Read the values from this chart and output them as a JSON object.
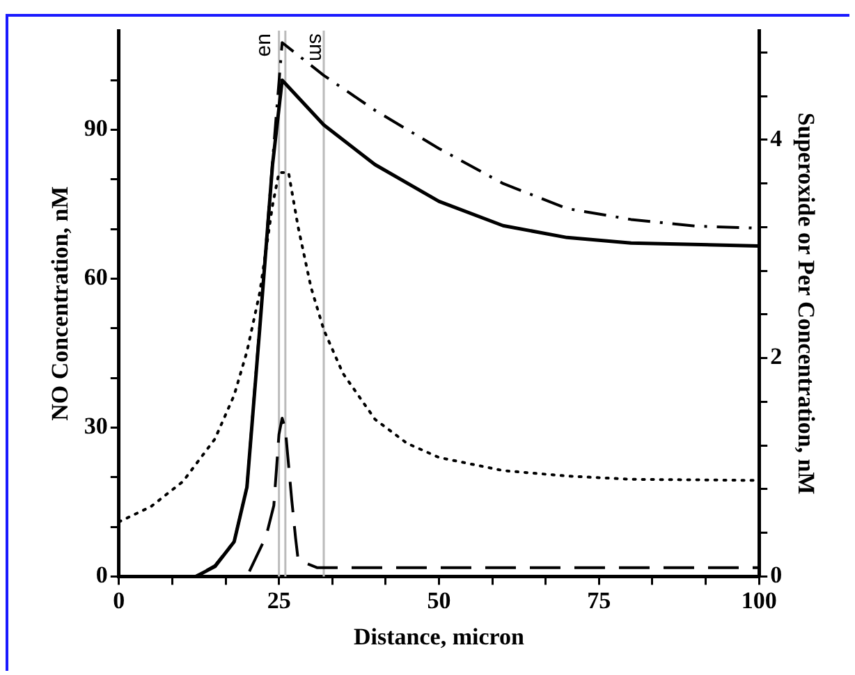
{
  "chart_data": {
    "type": "line",
    "xlabel": "Distance, micron",
    "ylabel": "NO Concentration, nM",
    "y2label": "Superoxide or Per Concentration, nM",
    "xlim": [
      0,
      100
    ],
    "xticks": [
      0,
      {
        "value": 8.33,
        "label": null
      },
      {
        "value": 16.67,
        "label": null
      },
      25,
      {
        "value": 33.33,
        "label": null
      },
      {
        "value": 41.67,
        "label": null
      },
      50,
      {
        "value": 58.33,
        "label": null
      },
      {
        "value": 66.67,
        "label": null
      },
      75,
      {
        "value": 83.33,
        "label": null
      },
      {
        "value": 91.67,
        "label": null
      },
      100
    ],
    "ylim": [
      0,
      110
    ],
    "yticks": [
      0,
      {
        "value": 10,
        "label": null
      },
      {
        "value": 20,
        "label": null
      },
      30,
      {
        "value": 40,
        "label": null
      },
      {
        "value": 50,
        "label": null
      },
      60,
      {
        "value": 70,
        "label": null
      },
      {
        "value": 80,
        "label": null
      },
      90,
      {
        "value": 100,
        "label": null
      }
    ],
    "y2lim": [
      0,
      5
    ],
    "y2ticks": [
      0,
      {
        "value": 0.4,
        "label": null
      },
      {
        "value": 0.8,
        "label": null
      },
      {
        "value": 1.2,
        "label": null
      },
      {
        "value": 1.6,
        "label": null
      },
      2,
      {
        "value": 2.4,
        "label": null
      },
      {
        "value": 2.8,
        "label": null
      },
      {
        "value": 3.2,
        "label": null
      },
      {
        "value": 3.6,
        "label": null
      },
      4,
      {
        "value": 4.4,
        "label": null
      },
      {
        "value": 4.8,
        "label": null
      }
    ],
    "grid": false,
    "legend": false,
    "marker": "none",
    "series": [
      {
        "color": "#000000",
        "line_style": "solid",
        "x": [
          0,
          12,
          15,
          18,
          20,
          22,
          24,
          25.5,
          32,
          40,
          50,
          60,
          70,
          80,
          100
        ],
        "values": [
          0,
          0,
          2,
          7,
          18,
          50,
          83,
          100,
          91,
          83,
          75.6,
          70.7,
          68.3,
          67.2,
          66.6
        ]
      },
      {
        "color": "#000000",
        "line_style": "dashdot",
        "axis": "y2",
        "x": [
          0,
          12,
          15,
          18,
          20,
          22,
          24,
          25.5,
          32,
          40,
          50,
          60,
          70,
          80,
          90,
          100
        ],
        "values": [
          0,
          0,
          0.1,
          0.32,
          0.82,
          2.3,
          3.8,
          4.89,
          4.59,
          4.27,
          3.92,
          3.6,
          3.37,
          3.27,
          3.21,
          3.19
        ]
      },
      {
        "color": "#000000",
        "line_style": "dotted",
        "axis": "y2",
        "x": [
          0,
          5,
          10,
          15,
          18,
          20,
          22,
          24,
          25,
          26.5,
          28,
          30,
          32,
          35,
          40,
          45,
          50,
          60,
          70,
          80,
          100
        ],
        "values": [
          0.5,
          0.64,
          0.87,
          1.26,
          1.66,
          2.06,
          2.6,
          3.4,
          3.7,
          3.7,
          3.2,
          2.65,
          2.26,
          1.86,
          1.44,
          1.22,
          1.09,
          0.97,
          0.92,
          0.89,
          0.88
        ]
      },
      {
        "color": "#000000",
        "line_style": "dashed",
        "axis": "y2",
        "x": [
          0,
          20,
          23,
          24.2,
          25,
          25.5,
          26,
          27,
          27.6,
          28,
          31,
          100
        ],
        "values": [
          0,
          0,
          0.37,
          0.65,
          1.3,
          1.45,
          1.35,
          0.7,
          0.35,
          0.15,
          0.08,
          0.08
        ]
      }
    ],
    "ref_lines": [
      {
        "axis": "x",
        "value": 25,
        "label": "en",
        "color": "#bbbbbb"
      },
      {
        "axis": "x",
        "value": 26,
        "label": "sm",
        "color": "#bbbbbb"
      },
      {
        "axis": "x",
        "value": 32,
        "color": "#bbbbbb"
      }
    ]
  }
}
